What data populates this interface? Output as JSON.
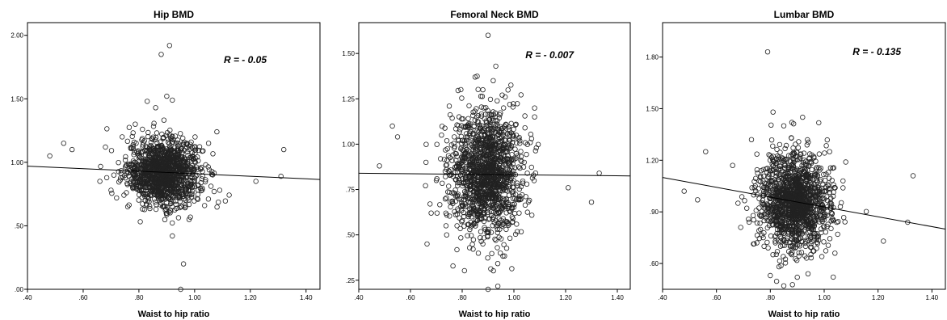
{
  "chart_data": [
    {
      "type": "scatter",
      "title": "Hip BMD",
      "xlabel": "Waist to hip ratio",
      "ylabel": "",
      "xlim": [
        0.4,
        1.45
      ],
      "ylim": [
        0.0,
        2.1
      ],
      "xticks": [
        ".40",
        ".60",
        ".80",
        "1.00",
        "1.20",
        "1.40"
      ],
      "xtick_values": [
        0.4,
        0.6,
        0.8,
        1.0,
        1.2,
        1.4
      ],
      "yticks": [
        ".00",
        ".50",
        "1.00",
        "1.50",
        "2.00"
      ],
      "ytick_values": [
        0.0,
        0.5,
        1.0,
        1.5,
        2.0
      ],
      "annotation": "R = - 0.05",
      "fit_line": {
        "x": [
          0.4,
          1.45
        ],
        "y": [
          0.97,
          0.865
        ]
      },
      "cloud": {
        "cx": 0.89,
        "sx": 0.065,
        "cy": 0.92,
        "sy": 0.13,
        "n": 1300
      },
      "points": [
        [
          0.48,
          1.05
        ],
        [
          0.53,
          1.15
        ],
        [
          0.56,
          1.1
        ],
        [
          0.88,
          1.85
        ],
        [
          0.91,
          1.92
        ],
        [
          0.9,
          1.52
        ],
        [
          0.92,
          1.49
        ],
        [
          0.86,
          1.43
        ],
        [
          0.83,
          1.48
        ],
        [
          0.96,
          0.2
        ],
        [
          0.92,
          0.42
        ],
        [
          0.98,
          0.55
        ],
        [
          0.9,
          0.6
        ],
        [
          0.95,
          0.0
        ],
        [
          1.22,
          0.85
        ],
        [
          1.32,
          1.1
        ],
        [
          1.31,
          0.89
        ],
        [
          1.08,
          1.24
        ],
        [
          1.09,
          0.78
        ],
        [
          1.07,
          0.77
        ],
        [
          0.7,
          0.78
        ],
        [
          0.66,
          0.85
        ],
        [
          0.68,
          1.12
        ],
        [
          0.74,
          1.2
        ],
        [
          0.79,
          1.15
        ],
        [
          0.72,
          0.72
        ],
        [
          0.76,
          0.65
        ],
        [
          1.04,
          0.98
        ],
        [
          1.05,
          1.15
        ],
        [
          1.02,
          0.95
        ]
      ]
    },
    {
      "type": "scatter",
      "title": "Femoral Neck  BMD",
      "xlabel": "Waist to hip ratio",
      "ylabel": "",
      "xlim": [
        0.4,
        1.45
      ],
      "ylim": [
        0.2,
        1.67
      ],
      "xticks": [
        ".40",
        ".60",
        ".80",
        "1.00",
        "1.20",
        "1.40"
      ],
      "xtick_values": [
        0.4,
        0.6,
        0.8,
        1.0,
        1.2,
        1.4
      ],
      "yticks": [
        ".25",
        ".50",
        ".75",
        "1.00",
        "1.25",
        "1.50"
      ],
      "ytick_values": [
        0.25,
        0.5,
        0.75,
        1.0,
        1.25,
        1.5
      ],
      "annotation": "R = - 0.007",
      "fit_line": {
        "x": [
          0.4,
          1.45
        ],
        "y": [
          0.84,
          0.825
        ]
      },
      "cloud": {
        "cx": 0.89,
        "sx": 0.07,
        "cy": 0.84,
        "sy": 0.17,
        "n": 1400
      },
      "points": [
        [
          0.48,
          0.88
        ],
        [
          0.53,
          1.1
        ],
        [
          0.55,
          1.04
        ],
        [
          0.9,
          1.6
        ],
        [
          0.93,
          1.43
        ],
        [
          0.85,
          1.37
        ],
        [
          0.88,
          1.3
        ],
        [
          0.92,
          1.35
        ],
        [
          0.9,
          0.2
        ],
        [
          0.88,
          0.45
        ],
        [
          0.93,
          0.47
        ],
        [
          0.97,
          0.53
        ],
        [
          1.08,
          1.15
        ],
        [
          1.21,
          0.76
        ],
        [
          1.3,
          0.68
        ],
        [
          1.33,
          0.84
        ],
        [
          1.04,
          0.9
        ],
        [
          1.05,
          0.78
        ],
        [
          0.7,
          0.8
        ],
        [
          0.66,
          0.9
        ],
        [
          0.68,
          0.62
        ],
        [
          0.72,
          1.05
        ],
        [
          0.75,
          1.21
        ],
        [
          0.78,
          0.55
        ],
        [
          0.74,
          0.5
        ],
        [
          1.02,
          0.62
        ],
        [
          1.06,
          0.69
        ]
      ]
    },
    {
      "type": "scatter",
      "title": "Lumbar  BMD",
      "xlabel": "Waist to hip ratio",
      "ylabel": "",
      "xlim": [
        0.4,
        1.45
      ],
      "ylim": [
        0.45,
        2.0
      ],
      "xticks": [
        ".40",
        ".60",
        ".80",
        "1.00",
        "1.20",
        "1.40"
      ],
      "xtick_values": [
        0.4,
        0.6,
        0.8,
        1.0,
        1.2,
        1.4
      ],
      "yticks": [
        ".60",
        ".90",
        "1.20",
        "1.50",
        "1.80"
      ],
      "ytick_values": [
        0.6,
        0.9,
        1.2,
        1.5,
        1.8
      ],
      "annotation": "R = - 0.135",
      "fit_line": {
        "x": [
          0.4,
          1.45
        ],
        "y": [
          1.1,
          0.8
        ]
      },
      "cloud": {
        "cx": 0.89,
        "sx": 0.065,
        "cy": 0.96,
        "sy": 0.14,
        "n": 1400
      },
      "points": [
        [
          0.48,
          1.02
        ],
        [
          0.53,
          0.97
        ],
        [
          0.56,
          1.25
        ],
        [
          0.79,
          1.83
        ],
        [
          0.81,
          1.48
        ],
        [
          0.85,
          1.4
        ],
        [
          0.88,
          1.42
        ],
        [
          0.92,
          1.45
        ],
        [
          0.85,
          0.47
        ],
        [
          0.8,
          0.53
        ],
        [
          0.9,
          0.52
        ],
        [
          0.94,
          0.54
        ],
        [
          1.22,
          0.73
        ],
        [
          1.33,
          1.11
        ],
        [
          1.31,
          0.84
        ],
        [
          1.08,
          1.19
        ],
        [
          1.07,
          1.08
        ],
        [
          1.05,
          0.77
        ],
        [
          0.68,
          0.95
        ],
        [
          0.66,
          1.17
        ],
        [
          0.69,
          0.81
        ],
        [
          0.73,
          1.32
        ],
        [
          0.75,
          0.72
        ],
        [
          0.77,
          1.05
        ],
        [
          1.02,
          1.25
        ],
        [
          1.04,
          0.66
        ],
        [
          1.06,
          0.93
        ]
      ]
    }
  ]
}
